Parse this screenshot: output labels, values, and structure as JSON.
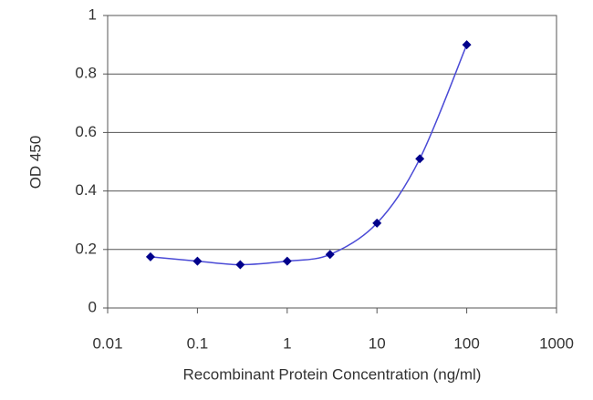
{
  "chart_data": {
    "type": "line",
    "x_label": "Recombinant Protein Concentration (ng/ml)",
    "y_label": "OD 450",
    "x": [
      0.03,
      0.1,
      0.3,
      1,
      3,
      10,
      30,
      100
    ],
    "series": [
      {
        "color": "#00008b",
        "values": [
          0.175,
          0.16,
          0.148,
          0.16,
          0.183,
          0.29,
          0.51,
          0.9
        ]
      }
    ],
    "line_color": "#4a4ad6",
    "xlim": [
      0.01,
      1000
    ],
    "xticks": [
      0.01,
      0.1,
      1,
      10,
      100,
      1000
    ],
    "xscale": "log",
    "ylim": [
      0,
      1
    ],
    "yticks": [
      0,
      0.2,
      0.4,
      0.6,
      0.8,
      1
    ],
    "grid": true
  }
}
